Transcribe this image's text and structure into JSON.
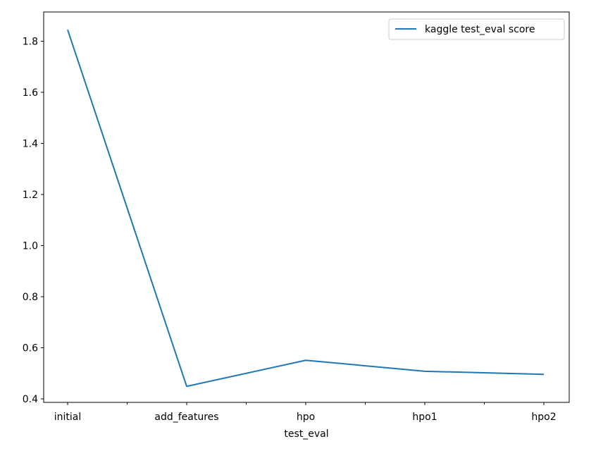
{
  "chart_data": {
    "type": "line",
    "categories": [
      "initial",
      "add_features",
      "hpo",
      "hpo1",
      "hpo2"
    ],
    "series": [
      {
        "name": "kaggle test_eval score",
        "values": [
          1.845,
          0.449,
          0.551,
          0.508,
          0.496
        ],
        "color": "#1f77b4"
      }
    ],
    "xlabel": "test_eval",
    "ylabel": "",
    "ylim": [
      0.4,
      1.8
    ],
    "y_ticks": [
      "0.4",
      "0.6",
      "0.8",
      "1.0",
      "1.2",
      "1.4",
      "1.6",
      "1.8"
    ],
    "grid": false,
    "legend_position": "top-right",
    "minor_ticks_x": true
  }
}
